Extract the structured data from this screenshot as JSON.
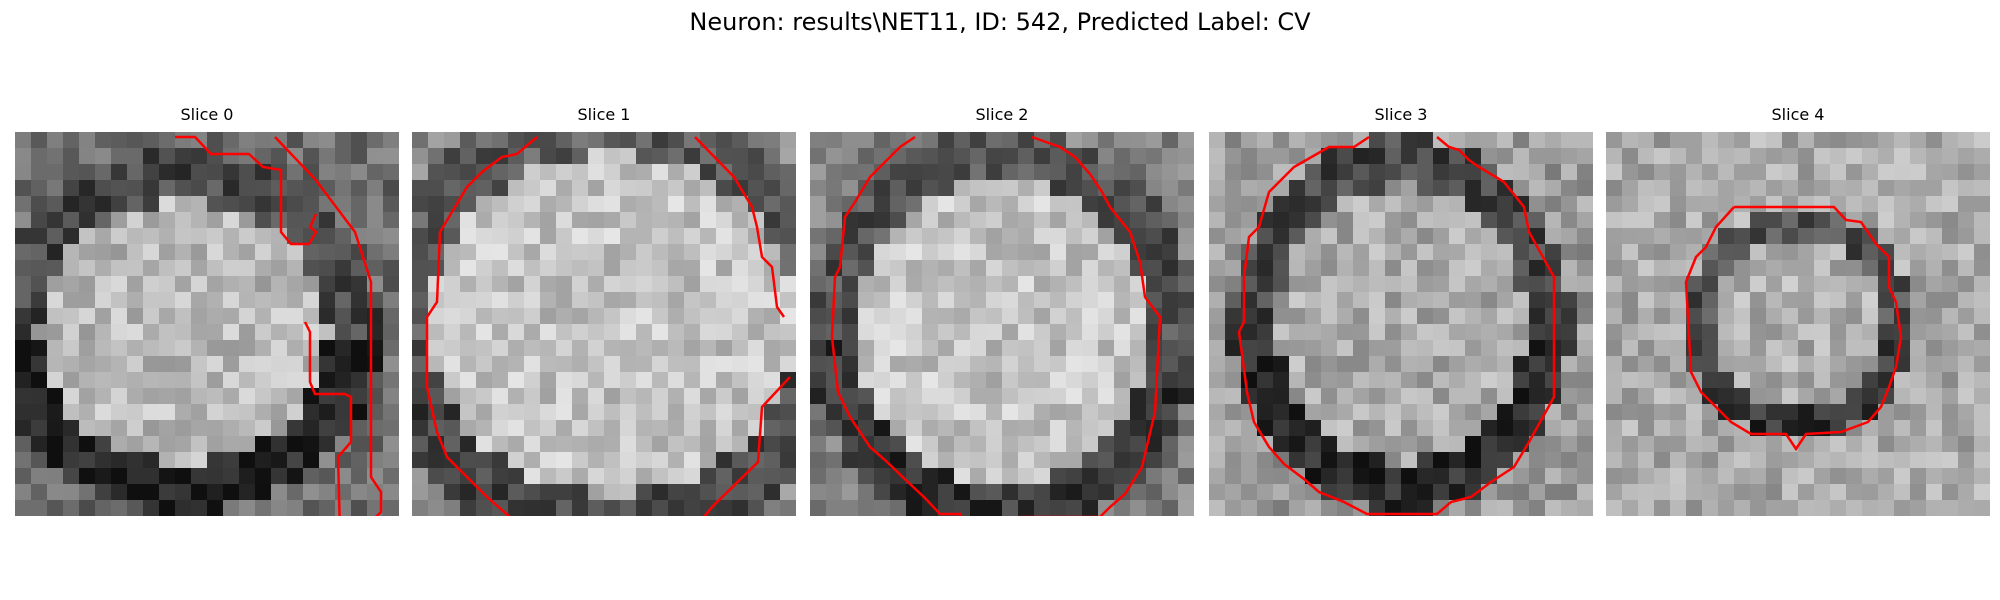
{
  "figure": {
    "title": "Neuron: results\\NET11, ID: 542, Predicted Label: CV"
  },
  "slices": [
    {
      "title": "Slice 0"
    },
    {
      "title": "Slice 1"
    },
    {
      "title": "Slice 2"
    },
    {
      "title": "Slice 3"
    },
    {
      "title": "Slice 4"
    }
  ],
  "colors": {
    "contour": "#ff0000",
    "background": "#ffffff"
  }
}
